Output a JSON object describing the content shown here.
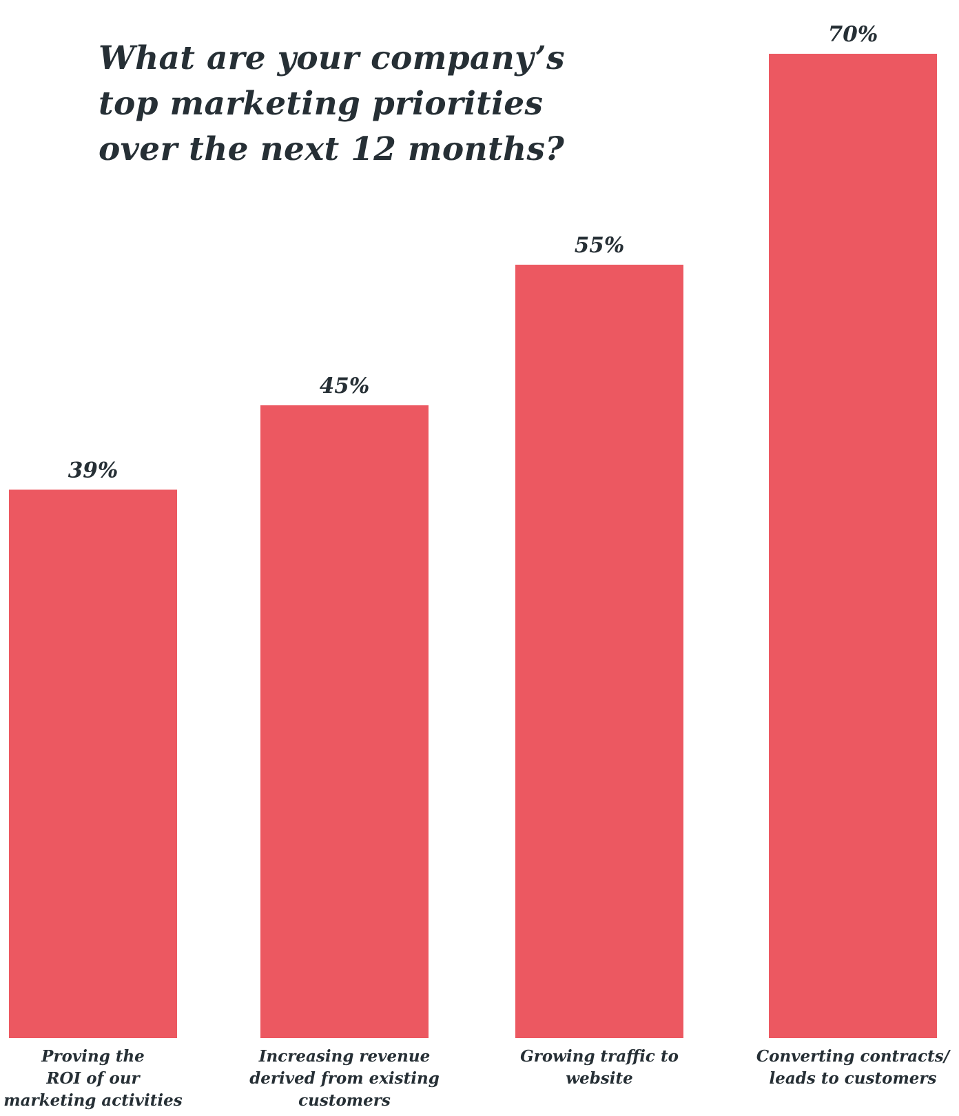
{
  "chart_data": {
    "type": "bar",
    "title": "What are your company’s top marketing priorities over the next 12 months?",
    "title_lines": [
      "What are your company’s",
      "top marketing priorities",
      "over the next 12 months?"
    ],
    "categories": [
      "Proving the ROI of our marketing activities",
      "Increasing revenue derived from existing customers",
      "Growing traffic to website",
      "Converting contracts/ leads to customers"
    ],
    "category_lines": [
      [
        "Proving the",
        "ROI of our",
        "marketing activities"
      ],
      [
        "Increasing revenue",
        "derived from existing",
        "customers"
      ],
      [
        "Growing traffic to",
        "website"
      ],
      [
        "Converting contracts/",
        "leads to customers"
      ]
    ],
    "values": [
      39,
      45,
      55,
      70
    ],
    "value_labels": [
      "39%",
      "45%",
      "55%",
      "70%"
    ],
    "unit": "%",
    "ylim": [
      0,
      100
    ],
    "grid": false,
    "bar_color": "#ec5861",
    "text_color": "#262f35"
  }
}
